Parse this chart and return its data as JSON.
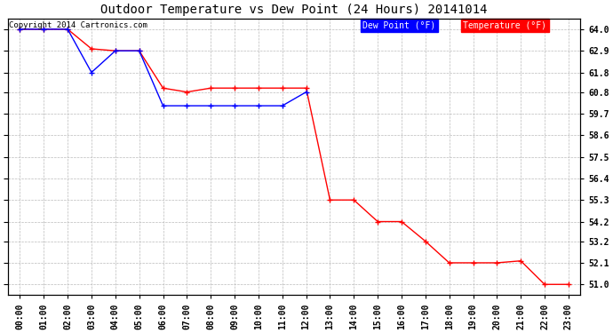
{
  "title": "Outdoor Temperature vs Dew Point (24 Hours) 20141014",
  "copyright_text": "Copyright 2014 Cartronics.com",
  "background_color": "#ffffff",
  "plot_bg_color": "#ffffff",
  "grid_color": "#bbbbbb",
  "x_labels": [
    "00:00",
    "01:00",
    "02:00",
    "03:00",
    "04:00",
    "05:00",
    "06:00",
    "07:00",
    "08:00",
    "09:00",
    "10:00",
    "11:00",
    "12:00",
    "13:00",
    "14:00",
    "15:00",
    "16:00",
    "17:00",
    "18:00",
    "19:00",
    "20:00",
    "21:00",
    "22:00",
    "23:00"
  ],
  "ylim_min": 50.45,
  "ylim_max": 64.55,
  "yticks": [
    51.0,
    52.1,
    53.2,
    54.2,
    55.3,
    56.4,
    57.5,
    58.6,
    59.7,
    60.8,
    61.8,
    62.9,
    64.0
  ],
  "temperature_data": {
    "hours": [
      0,
      1,
      2,
      3,
      4,
      5,
      6,
      7,
      8,
      9,
      10,
      11,
      12,
      13,
      14,
      15,
      16,
      17,
      18,
      19,
      20,
      21,
      22,
      23
    ],
    "values": [
      64.0,
      64.0,
      64.0,
      63.0,
      62.9,
      62.9,
      61.0,
      60.8,
      61.0,
      61.0,
      61.0,
      61.0,
      61.0,
      55.3,
      55.3,
      54.2,
      54.2,
      53.2,
      52.1,
      52.1,
      52.1,
      52.2,
      51.0,
      51.0
    ],
    "color": "#ff0000",
    "marker": "+"
  },
  "dewpoint_data": {
    "hours": [
      0,
      1,
      2,
      3,
      4,
      5,
      6,
      7,
      8,
      9,
      10,
      11,
      12
    ],
    "values": [
      64.0,
      64.0,
      64.0,
      61.8,
      62.9,
      62.9,
      60.1,
      60.1,
      60.1,
      60.1,
      60.1,
      60.1,
      60.8
    ],
    "color": "#0000ff",
    "marker": "+"
  },
  "legend_dew_label": "Dew Point (°F)",
  "legend_temp_label": "Temperature (°F)",
  "legend_dew_bg": "#0000ff",
  "legend_temp_bg": "#ff0000",
  "legend_text_color": "#ffffff",
  "title_fontsize": 10,
  "tick_fontsize": 7,
  "legend_fontsize": 7
}
